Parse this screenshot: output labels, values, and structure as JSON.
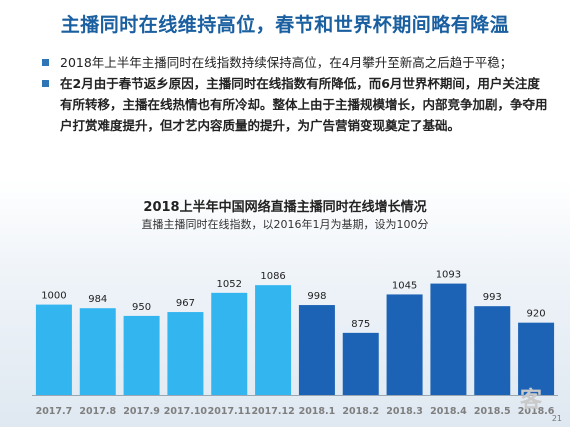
{
  "page": {
    "title": "主播同时在线维持高位，春节和世界杯期间略有降温",
    "bullets": [
      "2018年上半年主播同时在线指数持续保持高位，在4月攀升至新高之后趋于平稳；",
      "在2月由于春节返乡原因，主播同时在线指数有所降低，而6月世界杯期间，用户关注度有所转移，主播在线热情也有所冷却。整体上由于主播规模增长，内部竞争加剧，争夺用户打赏难度提升，但才艺内容质量的提升，为广告营销变现奠定了基础。"
    ],
    "page_number": "21",
    "logo_text": "客"
  },
  "chart_data": {
    "type": "bar",
    "title": "2018上半年中国网络直播主播同时在线增长情况",
    "subtitle": "直播主播同时在线指数，以2016年1月为基期，设为100分",
    "categories": [
      "2017.7",
      "2017.8",
      "2017.9",
      "2017.10",
      "2017.11",
      "2017.12",
      "2018.1",
      "2018.2",
      "2018.3",
      "2018.4",
      "2018.5",
      "2018.6"
    ],
    "values": [
      1000,
      984,
      950,
      967,
      1052,
      1086,
      998,
      875,
      1045,
      1093,
      993,
      920
    ],
    "colors": {
      "2017": "#33b5f0",
      "2018": "#1d63b5"
    },
    "grid": false,
    "legend": "none"
  }
}
